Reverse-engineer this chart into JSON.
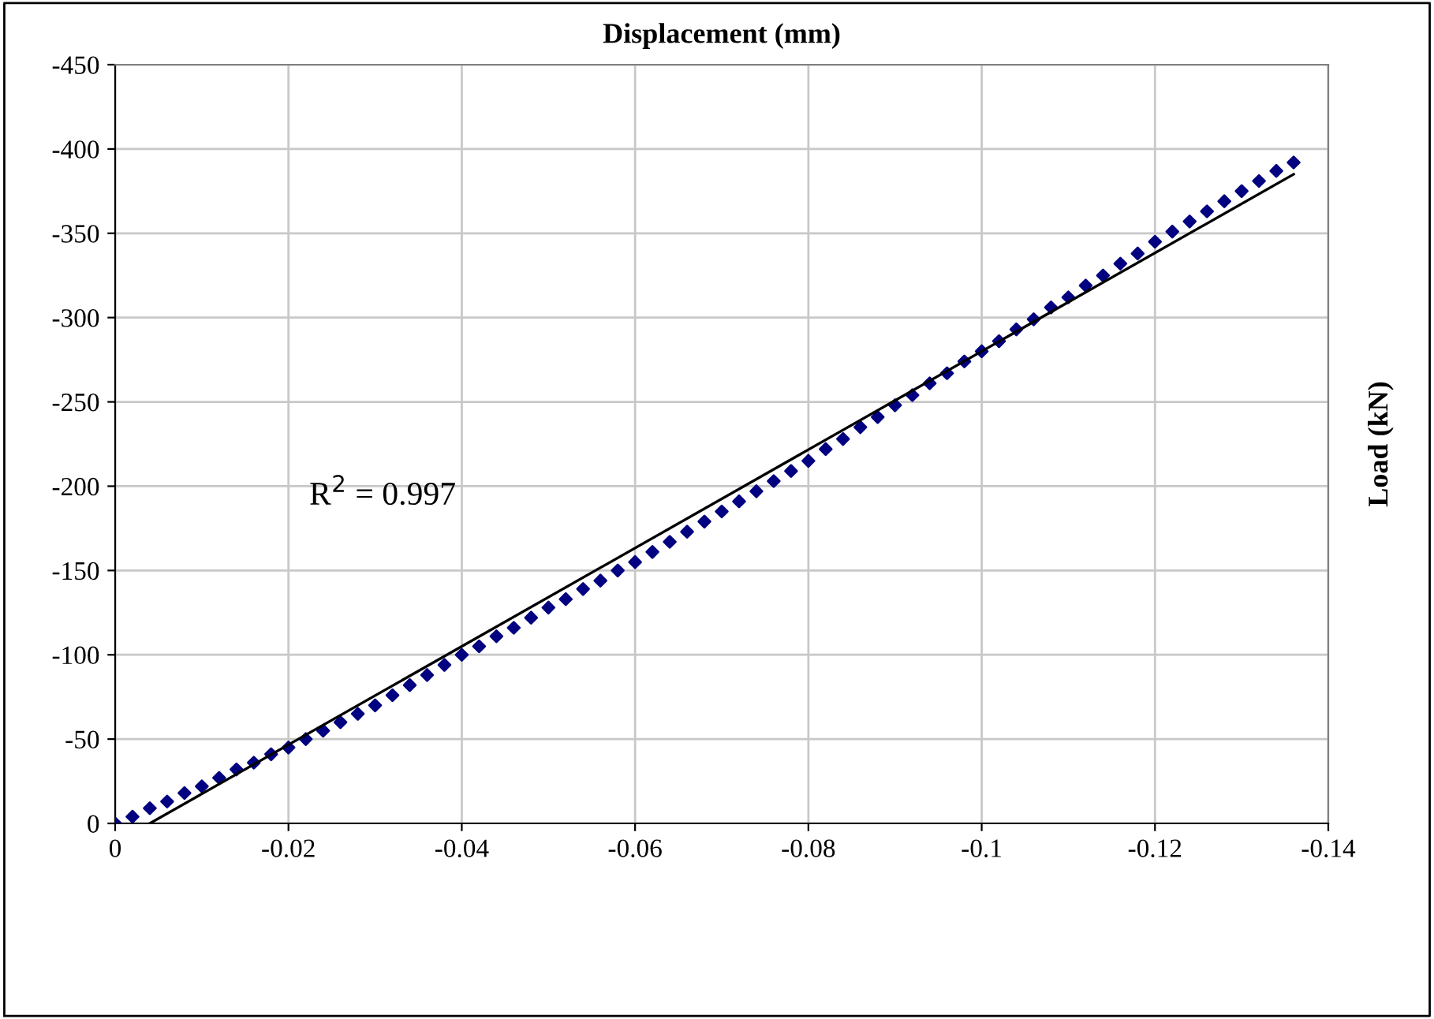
{
  "chart_data": {
    "type": "scatter",
    "title": "Displacement (mm)",
    "ylabel": "Load (kN)",
    "annotations": [
      "R$^{2}$ = 0.997"
    ],
    "xlim": [
      0,
      -0.14
    ],
    "ylim": [
      0,
      -450
    ],
    "xticks": [
      0,
      -0.02,
      -0.04,
      -0.06,
      -0.08,
      -0.1,
      -0.12,
      -0.14
    ],
    "yticks": [
      0,
      -50,
      -100,
      -150,
      -200,
      -250,
      -300,
      -350,
      -400,
      -450
    ],
    "grid": true,
    "legend": false,
    "series": [
      {
        "marker": "diamond",
        "color": "#000080",
        "x": [
          0,
          -0.002,
          -0.004,
          -0.006,
          -0.008,
          -0.01,
          -0.012,
          -0.014,
          -0.016,
          -0.018,
          -0.02,
          -0.022,
          -0.024,
          -0.026,
          -0.028,
          -0.03,
          -0.032,
          -0.034,
          -0.036,
          -0.038,
          -0.04,
          -0.042,
          -0.044,
          -0.046,
          -0.048,
          -0.05,
          -0.052,
          -0.054,
          -0.056,
          -0.058,
          -0.06,
          -0.062,
          -0.064,
          -0.066,
          -0.068,
          -0.07,
          -0.072,
          -0.074,
          -0.076,
          -0.078,
          -0.08,
          -0.082,
          -0.084,
          -0.086,
          -0.088,
          -0.09,
          -0.092,
          -0.094,
          -0.096,
          -0.098,
          -0.1,
          -0.102,
          -0.104,
          -0.106,
          -0.108,
          -0.11,
          -0.112,
          -0.114,
          -0.116,
          -0.118,
          -0.12,
          -0.122,
          -0.124,
          -0.126,
          -0.128,
          -0.13,
          -0.132,
          -0.134,
          -0.136
        ],
        "values": [
          0,
          -4,
          -9,
          -13,
          -18,
          -22,
          -27,
          -32,
          -36,
          -41,
          -45,
          -50,
          -55,
          -60,
          -65,
          -70,
          -76,
          -82,
          -88,
          -94,
          -100,
          -105,
          -111,
          -116,
          -122,
          -128,
          -133,
          -139,
          -144,
          -150,
          -155,
          -161,
          -167,
          -173,
          -179,
          -185,
          -191,
          -197,
          -203,
          -209,
          -215,
          -222,
          -228,
          -235,
          -241,
          -248,
          -254,
          -261,
          -267,
          -274,
          -280,
          -286,
          -293,
          -299,
          -306,
          -312,
          -319,
          -325,
          -332,
          -338,
          -345,
          -351,
          -357,
          -363,
          -369,
          -375,
          -381,
          -387,
          -392
        ]
      },
      {
        "type": "line",
        "marker": "none",
        "line_style": "solid",
        "color": "#000000",
        "x": [
          -0.004,
          -0.136
        ],
        "values": [
          0,
          -385
        ]
      }
    ]
  }
}
